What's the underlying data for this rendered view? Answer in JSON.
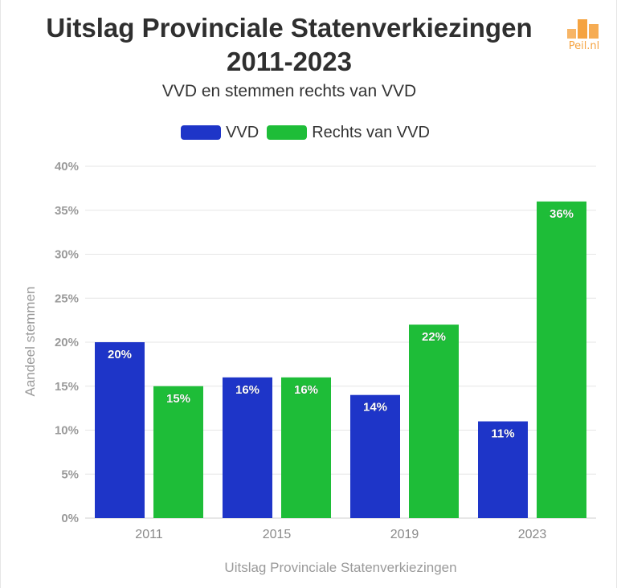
{
  "title_line1": "Uitslag Provinciale Statenverkiezingen",
  "title_line2": "2011-2023",
  "subtitle": "VVD en stemmen rechts van VVD",
  "logo": {
    "text": "Peil.nl",
    "icon": "bar-chart-logo-icon",
    "color": "#f5a340"
  },
  "chart_data": {
    "type": "bar",
    "categories": [
      "2011",
      "2015",
      "2019",
      "2023"
    ],
    "series": [
      {
        "name": "VVD",
        "values": [
          20,
          16,
          14,
          11
        ],
        "labels": [
          "20%",
          "16%",
          "14%",
          "11%"
        ],
        "color": "#1e35c8"
      },
      {
        "name": "Rechts van VVD",
        "values": [
          15,
          16,
          22,
          36
        ],
        "labels": [
          "15%",
          "16%",
          "22%",
          "36%"
        ],
        "color": "#1ebd38"
      }
    ],
    "ylim": [
      0,
      40
    ],
    "yticks": [
      0,
      5,
      10,
      15,
      20,
      25,
      30,
      35,
      40
    ],
    "ytick_labels": [
      "0%",
      "5%",
      "10%",
      "15%",
      "20%",
      "25%",
      "30%",
      "35%",
      "40%"
    ],
    "xlabel": "Uitslag Provinciale Statenverkiezingen",
    "ylabel": "Aandeel stemmen",
    "grid": true,
    "legend_position": "top"
  }
}
